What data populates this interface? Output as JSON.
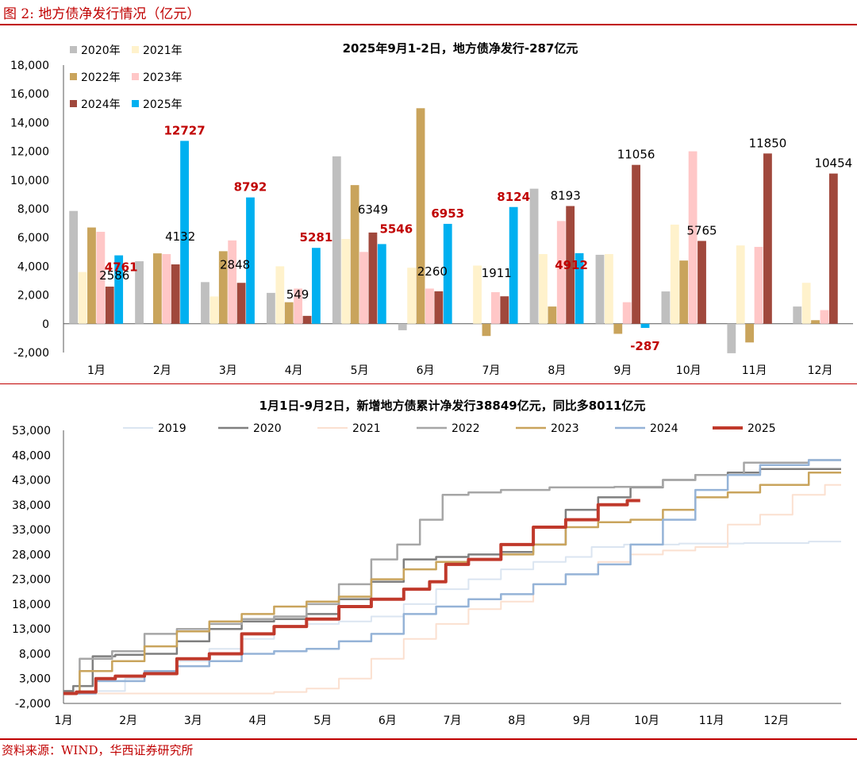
{
  "figure_title": "图 2:  地方债净发行情况（亿元）",
  "source": "资料来源：WIND，华西证券研究所",
  "colors": {
    "accent": "#c00000"
  },
  "chart_data": [
    {
      "type": "bar",
      "title": "2025年9月1-2日，地方债净发行-287亿元",
      "categories": [
        "1月",
        "2月",
        "3月",
        "4月",
        "5月",
        "6月",
        "7月",
        "8月",
        "9月",
        "10月",
        "11月",
        "12月"
      ],
      "yticks": [
        "-2,000",
        "0",
        "2,000",
        "4,000",
        "6,000",
        "8,000",
        "10,000",
        "12,000",
        "14,000",
        "16,000",
        "18,000"
      ],
      "ylim": [
        -2000,
        18000
      ],
      "legend_position": "top-left",
      "series": [
        {
          "name": "2020年",
          "color": "#bfbfbf",
          "values": [
            7850,
            4350,
            2900,
            2150,
            11650,
            -450,
            null,
            9400,
            4800,
            2250,
            -2050,
            1200
          ]
        },
        {
          "name": "2021年",
          "color": "#fff2cc",
          "values": [
            3600,
            null,
            1900,
            4000,
            5900,
            3900,
            4050,
            4850,
            4850,
            6900,
            5450,
            2850
          ]
        },
        {
          "name": "2022年",
          "color": "#c9a45c",
          "values": [
            6700,
            4900,
            5050,
            1500,
            9650,
            15000,
            -850,
            1200,
            -700,
            4400,
            -1300,
            250
          ]
        },
        {
          "name": "2023年",
          "color": "#ffc7c7",
          "values": [
            6400,
            4850,
            5800,
            2450,
            5000,
            2450,
            2200,
            7150,
            1500,
            12000,
            5350,
            950
          ]
        },
        {
          "name": "2024年",
          "color": "#a0483c",
          "values": [
            2586,
            4132,
            2848,
            549,
            6349,
            2260,
            1911,
            8193,
            11056,
            5765,
            11850,
            10454
          ]
        },
        {
          "name": "2025年",
          "color": "#00b0f0",
          "values": [
            4761,
            12727,
            8792,
            5281,
            5546,
            6953,
            8124,
            4912,
            -287,
            null,
            null,
            null
          ]
        }
      ],
      "data_labels": {
        "2024年": [
          "2586",
          "4132",
          "2848",
          "549",
          "6349",
          "2260",
          "1911",
          "8193",
          "11056",
          "5765",
          "11850",
          "10454"
        ],
        "2025年": [
          "4761",
          "12727",
          "8792",
          "5281",
          "5546",
          "6953",
          "8124",
          "4912",
          "-287"
        ]
      }
    },
    {
      "type": "line",
      "title": "1月1日-9月2日，新增地方债累计净发行38849亿元，同比多8011亿元",
      "xticks": [
        "1月",
        "2月",
        "3月",
        "4月",
        "5月",
        "6月",
        "7月",
        "8月",
        "9月",
        "10月",
        "11月",
        "12月"
      ],
      "yticks": [
        "-2,000",
        "3,000",
        "8,000",
        "13,000",
        "18,000",
        "23,000",
        "28,000",
        "33,000",
        "38,000",
        "43,000",
        "48,000",
        "53,000"
      ],
      "ylim": [
        -2000,
        53000
      ],
      "xlim_months": [
        0,
        12
      ],
      "legend_position": "top",
      "series": [
        {
          "name": "2019",
          "color": "#dbe5f1",
          "width": 2,
          "points": [
            [
              0,
              0
            ],
            [
              0.9,
              500
            ],
            [
              1.0,
              3000
            ],
            [
              1.5,
              4000
            ],
            [
              2.0,
              6500
            ],
            [
              2.5,
              9000
            ],
            [
              3.0,
              11000
            ],
            [
              3.5,
              13500
            ],
            [
              4.0,
              14000
            ],
            [
              4.5,
              14500
            ],
            [
              5.0,
              15500
            ],
            [
              5.5,
              18000
            ],
            [
              6.0,
              21000
            ],
            [
              6.5,
              23000
            ],
            [
              7.0,
              25000
            ],
            [
              7.5,
              26500
            ],
            [
              8.0,
              27500
            ],
            [
              8.3,
              29500
            ],
            [
              9.0,
              30000
            ],
            [
              10.0,
              30200
            ],
            [
              11.0,
              30300
            ],
            [
              12.0,
              30600
            ]
          ]
        },
        {
          "name": "2020",
          "color": "#7f7f7f",
          "width": 2.5,
          "points": [
            [
              0,
              500
            ],
            [
              0.3,
              1500
            ],
            [
              0.6,
              7500
            ],
            [
              1.0,
              7800
            ],
            [
              1.5,
              8000
            ],
            [
              2.0,
              10500
            ],
            [
              2.5,
              13000
            ],
            [
              3.0,
              14500
            ],
            [
              3.5,
              15000
            ],
            [
              4.0,
              16000
            ],
            [
              4.5,
              19000
            ],
            [
              5.0,
              22500
            ],
            [
              5.5,
              27000
            ],
            [
              6.0,
              27500
            ],
            [
              6.5,
              28000
            ],
            [
              7.0,
              28500
            ],
            [
              7.5,
              30000
            ],
            [
              8.0,
              37000
            ],
            [
              8.5,
              39500
            ],
            [
              9.0,
              41500
            ],
            [
              9.5,
              43000
            ],
            [
              10.0,
              44000
            ],
            [
              10.5,
              44500
            ],
            [
              11.0,
              45200
            ],
            [
              12.0,
              45200
            ]
          ]
        },
        {
          "name": "2021",
          "color": "#fbe0d0",
          "width": 2,
          "points": [
            [
              0,
              0
            ],
            [
              3.0,
              0
            ],
            [
              3.5,
              300
            ],
            [
              4.0,
              1000
            ],
            [
              4.5,
              3000
            ],
            [
              5.0,
              7000
            ],
            [
              5.5,
              11000
            ],
            [
              6.0,
              14000
            ],
            [
              6.5,
              17000
            ],
            [
              7.0,
              18500
            ],
            [
              7.5,
              22000
            ],
            [
              8.0,
              24000
            ],
            [
              8.5,
              26500
            ],
            [
              9.0,
              28000
            ],
            [
              9.5,
              28800
            ],
            [
              10.0,
              29500
            ],
            [
              10.5,
              34000
            ],
            [
              11.0,
              36000
            ],
            [
              11.5,
              40000
            ],
            [
              12.0,
              42000
            ]
          ]
        },
        {
          "name": "2022",
          "color": "#a6a6a6",
          "width": 2.5,
          "points": [
            [
              0,
              0
            ],
            [
              0.5,
              7000
            ],
            [
              1.0,
              8500
            ],
            [
              1.5,
              12000
            ],
            [
              2.0,
              13000
            ],
            [
              2.5,
              14000
            ],
            [
              3.0,
              15000
            ],
            [
              3.5,
              15500
            ],
            [
              4.0,
              18000
            ],
            [
              4.5,
              22000
            ],
            [
              5.0,
              27000
            ],
            [
              5.3,
              30000
            ],
            [
              5.7,
              35000
            ],
            [
              6.0,
              40000
            ],
            [
              6.5,
              40500
            ],
            [
              7.0,
              41000
            ],
            [
              8.0,
              41500
            ],
            [
              9.0,
              41600
            ],
            [
              9.5,
              43000
            ],
            [
              10.0,
              44000
            ],
            [
              11.0,
              46500
            ],
            [
              12.0,
              47000
            ]
          ]
        },
        {
          "name": "2023",
          "color": "#c9a45c",
          "width": 2.5,
          "points": [
            [
              0,
              0
            ],
            [
              0.5,
              4500
            ],
            [
              1.0,
              6500
            ],
            [
              1.5,
              9500
            ],
            [
              2.0,
              12500
            ],
            [
              2.5,
              14500
            ],
            [
              3.0,
              16000
            ],
            [
              3.5,
              17500
            ],
            [
              4.0,
              18500
            ],
            [
              4.5,
              19500
            ],
            [
              5.0,
              23000
            ],
            [
              5.5,
              25000
            ],
            [
              6.0,
              26500
            ],
            [
              6.5,
              27000
            ],
            [
              7.0,
              28000
            ],
            [
              7.5,
              30000
            ],
            [
              8.0,
              33500
            ],
            [
              8.5,
              34500
            ],
            [
              9.0,
              35000
            ],
            [
              9.5,
              37000
            ],
            [
              10.0,
              39500
            ],
            [
              10.5,
              40500
            ],
            [
              11.0,
              42000
            ],
            [
              12.0,
              44500
            ]
          ]
        },
        {
          "name": "2024",
          "color": "#95b3d7",
          "width": 2.5,
          "points": [
            [
              0,
              0
            ],
            [
              1.0,
              2500
            ],
            [
              1.5,
              4500
            ],
            [
              2.0,
              5500
            ],
            [
              2.5,
              6500
            ],
            [
              3.0,
              8000
            ],
            [
              3.5,
              8500
            ],
            [
              4.0,
              9000
            ],
            [
              4.5,
              10500
            ],
            [
              5.0,
              12000
            ],
            [
              5.5,
              16000
            ],
            [
              6.0,
              17500
            ],
            [
              6.5,
              19000
            ],
            [
              7.0,
              20000
            ],
            [
              7.5,
              22000
            ],
            [
              8.0,
              24000
            ],
            [
              8.5,
              26000
            ],
            [
              9.0,
              30000
            ],
            [
              9.5,
              35000
            ],
            [
              10.0,
              41000
            ],
            [
              10.5,
              44000
            ],
            [
              11.0,
              46000
            ],
            [
              12.0,
              47000
            ]
          ]
        },
        {
          "name": "2025",
          "color": "#c0392b",
          "width": 4,
          "points": [
            [
              0,
              0
            ],
            [
              0.4,
              300
            ],
            [
              0.6,
              3000
            ],
            [
              1.0,
              3500
            ],
            [
              1.5,
              4000
            ],
            [
              2.0,
              7000
            ],
            [
              2.5,
              8000
            ],
            [
              3.0,
              12000
            ],
            [
              3.5,
              13500
            ],
            [
              4.0,
              15000
            ],
            [
              4.5,
              17500
            ],
            [
              5.0,
              19000
            ],
            [
              5.5,
              21000
            ],
            [
              5.8,
              22500
            ],
            [
              6.0,
              26000
            ],
            [
              6.5,
              27000
            ],
            [
              7.0,
              30000
            ],
            [
              7.5,
              33500
            ],
            [
              8.0,
              35000
            ],
            [
              8.5,
              38000
            ],
            [
              8.9,
              38849
            ]
          ]
        }
      ]
    }
  ]
}
